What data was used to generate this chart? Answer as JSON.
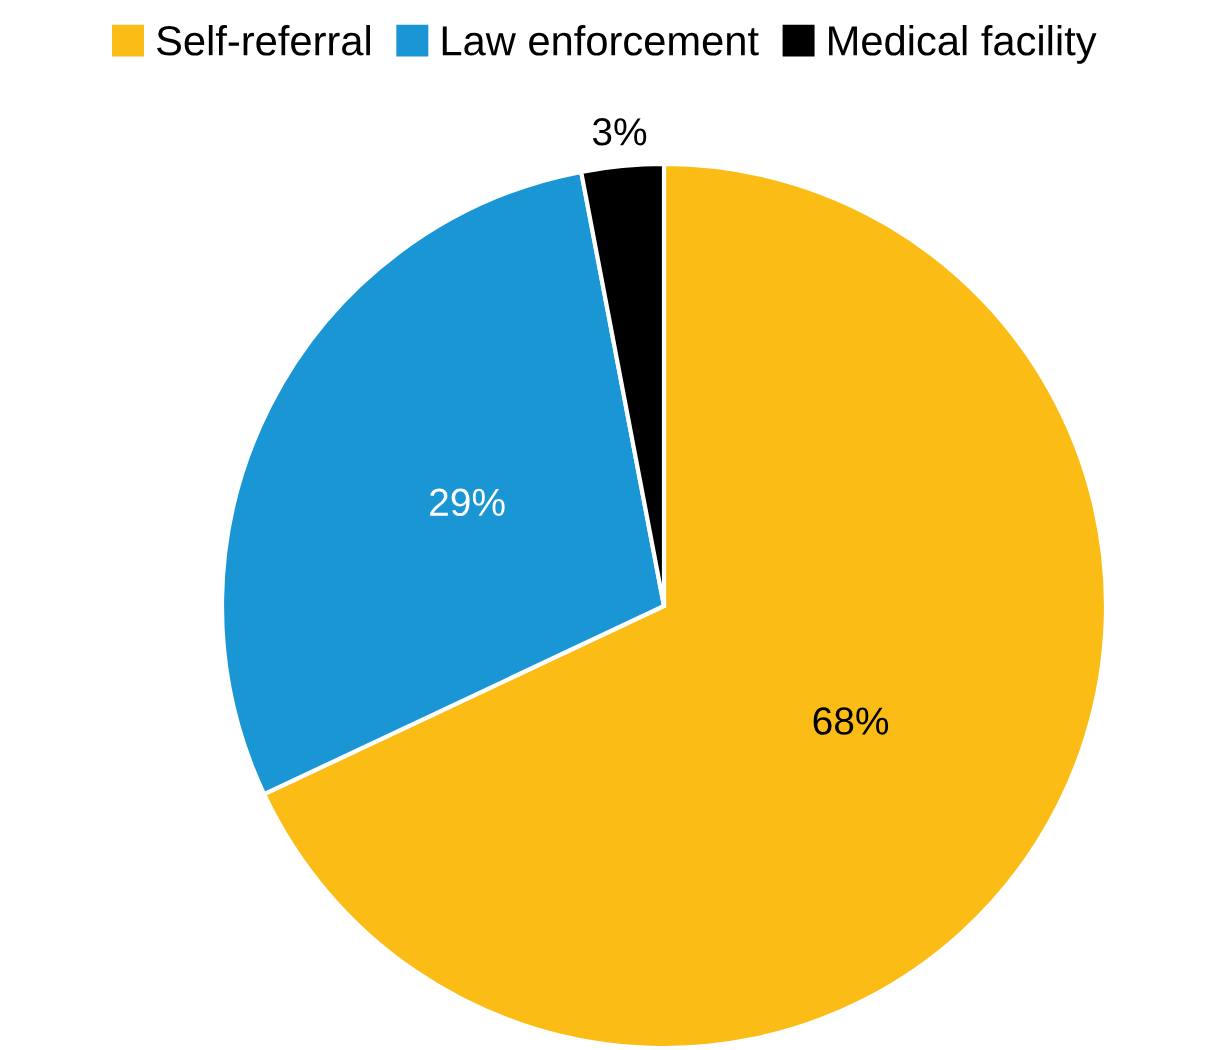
{
  "chart_data": {
    "type": "pie",
    "categories": [
      "Self-referral",
      "Law enforcement",
      "Medical facility"
    ],
    "values": [
      68,
      29,
      3
    ],
    "colors": [
      "#fbbc16",
      "#1a96d4",
      "#000000"
    ],
    "value_labels": [
      "68%",
      "29%",
      "3%"
    ],
    "legend": "top"
  }
}
